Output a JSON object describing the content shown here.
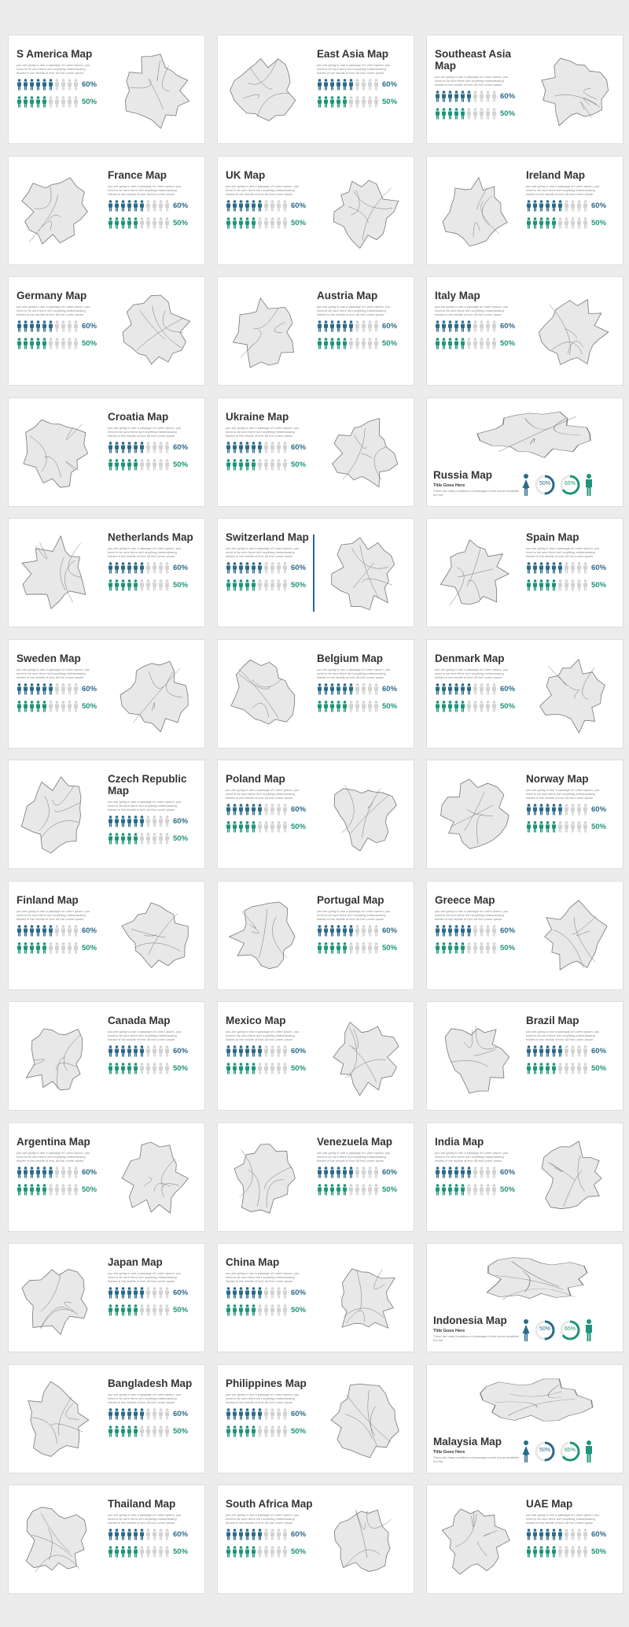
{
  "colors": {
    "teal_dark": "#2c6a8a",
    "teal_green": "#1f9478",
    "inactive": "#d2d2d2",
    "map_fill": "#e8e8e8",
    "map_stroke": "#777777"
  },
  "body_text": "you are going to use a passage of Lorem Ipsum, you need to be sure there isn't anything embarrassing hidden in the middle of text. All the Lorem Ipsum",
  "special_sub": "Title Goes Here",
  "special_desc": "There are many variations of passages lorem ipsum available but the",
  "cards": [
    {
      "title": "S America Map",
      "p1": "60%",
      "p2": "50%",
      "map_side": "right"
    },
    {
      "title": "East Asia Map",
      "p1": "60%",
      "p2": "50%",
      "map_side": "left"
    },
    {
      "title": "Southeast Asia Map",
      "p1": "60%",
      "p2": "50%",
      "map_side": "right"
    },
    {
      "title": "France Map",
      "p1": "60%",
      "p2": "50%",
      "map_side": "left"
    },
    {
      "title": "UK Map",
      "p1": "60%",
      "p2": "50%",
      "map_side": "right"
    },
    {
      "title": "Ireland Map",
      "p1": "60%",
      "p2": "50%",
      "map_side": "left"
    },
    {
      "title": "Germany Map",
      "p1": "60%",
      "p2": "50%",
      "map_side": "right"
    },
    {
      "title": "Austria Map",
      "p1": "60%",
      "p2": "50%",
      "map_side": "left"
    },
    {
      "title": "Italy Map",
      "p1": "60%",
      "p2": "50%",
      "map_side": "right"
    },
    {
      "title": "Croatia Map",
      "p1": "60%",
      "p2": "50%",
      "map_side": "left"
    },
    {
      "title": "Ukraine Map",
      "p1": "60%",
      "p2": "50%",
      "map_side": "right"
    },
    {
      "title": "Russia Map",
      "special": true,
      "r1": "50%",
      "r2": "65%",
      "v1": 0.5,
      "v2": 0.65
    },
    {
      "title": "Netherlands Map",
      "p1": "60%",
      "p2": "50%",
      "map_side": "left"
    },
    {
      "title": "Switzerland Map",
      "p1": "60%",
      "p2": "50%",
      "map_side": "right",
      "divider": true
    },
    {
      "title": "Spain Map",
      "p1": "60%",
      "p2": "50%",
      "map_side": "left"
    },
    {
      "title": "Sweden Map",
      "p1": "60%",
      "p2": "50%",
      "map_side": "right"
    },
    {
      "title": "Belgium Map",
      "p1": "60%",
      "p2": "50%",
      "map_side": "left"
    },
    {
      "title": "Denmark Map",
      "p1": "60%",
      "p2": "50%",
      "map_side": "right"
    },
    {
      "title": "Czech Republic Map",
      "p1": "60%",
      "p2": "50%",
      "map_side": "left"
    },
    {
      "title": "Poland Map",
      "p1": "60%",
      "p2": "50%",
      "map_side": "right"
    },
    {
      "title": "Norway Map",
      "p1": "60%",
      "p2": "50%",
      "map_side": "left"
    },
    {
      "title": "Finland Map",
      "p1": "60%",
      "p2": "50%",
      "map_side": "right"
    },
    {
      "title": "Portugal Map",
      "p1": "60%",
      "p2": "50%",
      "map_side": "left"
    },
    {
      "title": "Greece Map",
      "p1": "60%",
      "p2": "50%",
      "map_side": "right"
    },
    {
      "title": "Canada Map",
      "p1": "60%",
      "p2": "50%",
      "map_side": "left"
    },
    {
      "title": "Mexico Map",
      "p1": "60%",
      "p2": "50%",
      "map_side": "right"
    },
    {
      "title": "Brazil Map",
      "p1": "60%",
      "p2": "50%",
      "map_side": "left"
    },
    {
      "title": "Argentina Map",
      "p1": "60%",
      "p2": "50%",
      "map_side": "right"
    },
    {
      "title": "Venezuela Map",
      "p1": "60%",
      "p2": "50%",
      "map_side": "left"
    },
    {
      "title": "India Map",
      "p1": "60%",
      "p2": "50%",
      "map_side": "right"
    },
    {
      "title": "Japan Map",
      "p1": "60%",
      "p2": "50%",
      "map_side": "left"
    },
    {
      "title": "China Map",
      "p1": "60%",
      "p2": "50%",
      "map_side": "right"
    },
    {
      "title": "Indonesia Map",
      "special": true,
      "r1": "50%",
      "r2": "65%",
      "v1": 0.5,
      "v2": 0.65
    },
    {
      "title": "Bangladesh Map",
      "p1": "60%",
      "p2": "50%",
      "map_side": "left"
    },
    {
      "title": "Philippines Map",
      "p1": "60%",
      "p2": "50%",
      "map_side": "right"
    },
    {
      "title": "Malaysia Map",
      "special": true,
      "r1": "50%",
      "r2": "65%",
      "v1": 0.5,
      "v2": 0.65
    },
    {
      "title": "Thailand Map",
      "p1": "60%",
      "p2": "50%",
      "map_side": "left"
    },
    {
      "title": "South Africa Map",
      "p1": "60%",
      "p2": "50%",
      "map_side": "right"
    },
    {
      "title": "UAE Map",
      "p1": "60%",
      "p2": "50%",
      "map_side": "left"
    }
  ]
}
